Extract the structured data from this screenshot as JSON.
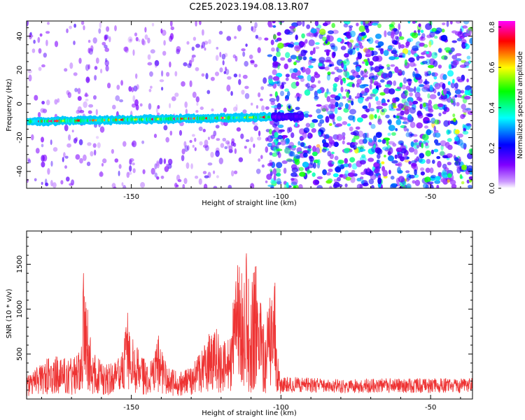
{
  "title": "C2E5.2023.194.08.13.R07",
  "chart_data": [
    {
      "type": "heatmap",
      "name": "spectrogram",
      "xlabel": "Height of straight line (km)",
      "ylabel": "Frequency (Hz)",
      "xlim": [
        -185,
        -36
      ],
      "ylim": [
        -50,
        49
      ],
      "x_ticks": [
        -150,
        -100,
        -50
      ],
      "x_tick_labels": [
        "-150",
        "-100",
        "-50"
      ],
      "y_ticks": [
        -40,
        -20,
        0,
        20,
        40
      ],
      "y_tick_labels": [
        "-40",
        "-20",
        "0",
        "20",
        "40"
      ],
      "signal_band": {
        "x_start": -185,
        "x_end": -93,
        "freq_start_hz": -10.5,
        "freq_end_hz": -7.5,
        "peak_amplitude": 0.82
      },
      "low_noise_region": {
        "x_start": -185,
        "x_end": -104,
        "typical_amplitude": 0.15
      },
      "high_noise_region": {
        "x_start": -104,
        "x_end": -36,
        "typical_amplitude": 0.3
      },
      "colorbar": {
        "label": "Normalized spectral amplitude",
        "range": [
          0,
          0.83
        ],
        "ticks": [
          0.0,
          0.2,
          0.4,
          0.6,
          0.8
        ],
        "tick_labels": [
          "0.0",
          "0.2",
          "0.4",
          "0.6",
          "0.8"
        ],
        "stops": [
          "#ffffff",
          "#cc99ff",
          "#8000ff",
          "#0000ff",
          "#00ffff",
          "#00ff00",
          "#ffff00",
          "#ff0000",
          "#ff00ff"
        ]
      }
    },
    {
      "type": "line",
      "name": "snr",
      "xlabel": "Height of straight line (km)",
      "ylabel": "SNR (10 * v/v)",
      "xlim": [
        -185,
        -36
      ],
      "ylim": [
        0,
        1870
      ],
      "x_ticks": [
        -150,
        -100,
        -50
      ],
      "x_tick_labels": [
        "-150",
        "-100",
        "-50"
      ],
      "y_ticks": [
        500,
        1000,
        1500
      ],
      "y_tick_labels": [
        "500",
        "1000",
        "1500"
      ],
      "color": "#ee3333",
      "series": [
        {
          "name": "SNR",
          "x": [
            -185,
            -180,
            -177,
            -175,
            -171,
            -168,
            -166.5,
            -166,
            -165,
            -163,
            -159,
            -156,
            -153,
            -151.5,
            -150.5,
            -149,
            -147,
            -144,
            -142,
            -141,
            -140,
            -138,
            -136,
            -133,
            -130,
            -127,
            -125,
            -122,
            -120,
            -117,
            -115,
            -113,
            -112.5,
            -112,
            -111,
            -110.5,
            -109.5,
            -109,
            -108.5,
            -108,
            -107,
            -106,
            -105,
            -104,
            -103.5,
            -102,
            -101.5,
            -100,
            -96,
            -90,
            -80,
            -70,
            -60,
            -50,
            -45,
            -40,
            -36
          ],
          "values": [
            180,
            300,
            350,
            370,
            320,
            350,
            640,
            1040,
            820,
            380,
            300,
            290,
            390,
            700,
            660,
            500,
            350,
            280,
            400,
            520,
            420,
            260,
            240,
            220,
            250,
            380,
            460,
            640,
            420,
            540,
            1040,
            1130,
            1170,
            1520,
            1620,
            1000,
            1320,
            1620,
            1700,
            1050,
            1300,
            1020,
            860,
            1020,
            780,
            1030,
            600,
            160,
            165,
            155,
            150,
            150,
            155,
            150,
            160,
            150,
            155
          ]
        }
      ]
    }
  ]
}
